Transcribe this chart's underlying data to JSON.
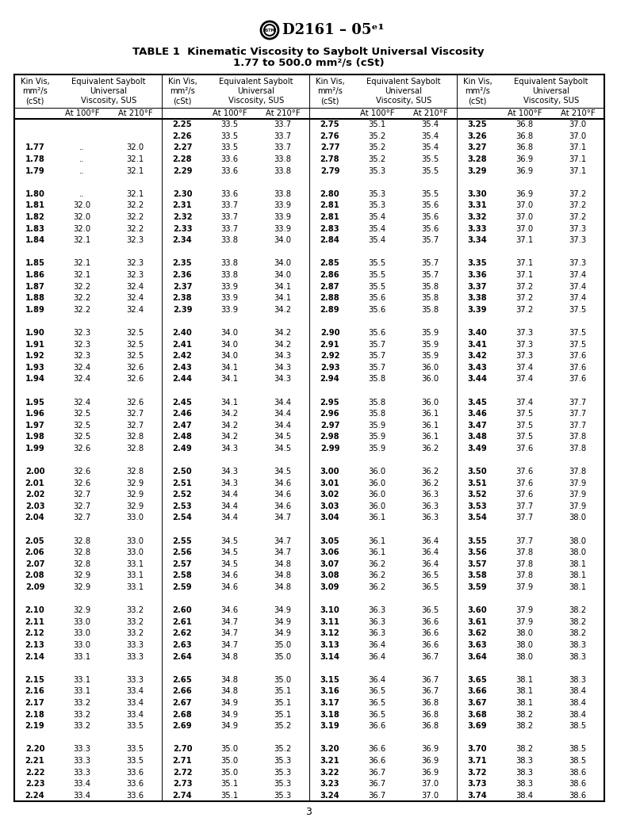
{
  "title_line1": "TABLE 1  Kinematic Viscosity to Saybolt Universal Viscosity",
  "title_line2": "1.77 to 500.0 mm²/s (cSt)",
  "header_doc": "D2161 – 05ᵉ¹",
  "page_num": "3",
  "rows": [
    [
      "",
      "",
      "",
      "2.25",
      "33.5",
      "33.7",
      "2.75",
      "35.1",
      "35.4",
      "3.25",
      "36.8",
      "37.0"
    ],
    [
      "",
      "",
      "",
      "2.26",
      "33.5",
      "33.7",
      "2.76",
      "35.2",
      "35.4",
      "3.26",
      "36.8",
      "37.0"
    ],
    [
      "1.77",
      "..",
      "32.0",
      "2.27",
      "33.5",
      "33.7",
      "2.77",
      "35.2",
      "35.4",
      "3.27",
      "36.8",
      "37.1"
    ],
    [
      "1.78",
      "..",
      "32.1",
      "2.28",
      "33.6",
      "33.8",
      "2.78",
      "35.2",
      "35.5",
      "3.28",
      "36.9",
      "37.1"
    ],
    [
      "1.79",
      "..",
      "32.1",
      "2.29",
      "33.6",
      "33.8",
      "2.79",
      "35.3",
      "35.5",
      "3.29",
      "36.9",
      "37.1"
    ],
    [
      "",
      "",
      "",
      "",
      "",
      "",
      "",
      "",
      "",
      "",
      "",
      ""
    ],
    [
      "1.80",
      "..",
      "32.1",
      "2.30",
      "33.6",
      "33.8",
      "2.80",
      "35.3",
      "35.5",
      "3.30",
      "36.9",
      "37.2"
    ],
    [
      "1.81",
      "32.0",
      "32.2",
      "2.31",
      "33.7",
      "33.9",
      "2.81",
      "35.3",
      "35.6",
      "3.31",
      "37.0",
      "37.2"
    ],
    [
      "1.82",
      "32.0",
      "32.2",
      "2.32",
      "33.7",
      "33.9",
      "2.81",
      "35.4",
      "35.6",
      "3.32",
      "37.0",
      "37.2"
    ],
    [
      "1.83",
      "32.0",
      "32.2",
      "2.33",
      "33.7",
      "33.9",
      "2.83",
      "35.4",
      "35.6",
      "3.33",
      "37.0",
      "37.3"
    ],
    [
      "1.84",
      "32.1",
      "32.3",
      "2.34",
      "33.8",
      "34.0",
      "2.84",
      "35.4",
      "35.7",
      "3.34",
      "37.1",
      "37.3"
    ],
    [
      "",
      "",
      "",
      "",
      "",
      "",
      "",
      "",
      "",
      "",
      "",
      ""
    ],
    [
      "1.85",
      "32.1",
      "32.3",
      "2.35",
      "33.8",
      "34.0",
      "2.85",
      "35.5",
      "35.7",
      "3.35",
      "37.1",
      "37.3"
    ],
    [
      "1.86",
      "32.1",
      "32.3",
      "2.36",
      "33.8",
      "34.0",
      "2.86",
      "35.5",
      "35.7",
      "3.36",
      "37.1",
      "37.4"
    ],
    [
      "1.87",
      "32.2",
      "32.4",
      "2.37",
      "33.9",
      "34.1",
      "2.87",
      "35.5",
      "35.8",
      "3.37",
      "37.2",
      "37.4"
    ],
    [
      "1.88",
      "32.2",
      "32.4",
      "2.38",
      "33.9",
      "34.1",
      "2.88",
      "35.6",
      "35.8",
      "3.38",
      "37.2",
      "37.4"
    ],
    [
      "1.89",
      "32.2",
      "32.4",
      "2.39",
      "33.9",
      "34.2",
      "2.89",
      "35.6",
      "35.8",
      "3.39",
      "37.2",
      "37.5"
    ],
    [
      "",
      "",
      "",
      "",
      "",
      "",
      "",
      "",
      "",
      "",
      "",
      ""
    ],
    [
      "1.90",
      "32.3",
      "32.5",
      "2.40",
      "34.0",
      "34.2",
      "2.90",
      "35.6",
      "35.9",
      "3.40",
      "37.3",
      "37.5"
    ],
    [
      "1.91",
      "32.3",
      "32.5",
      "2.41",
      "34.0",
      "34.2",
      "2.91",
      "35.7",
      "35.9",
      "3.41",
      "37.3",
      "37.5"
    ],
    [
      "1.92",
      "32.3",
      "32.5",
      "2.42",
      "34.0",
      "34.3",
      "2.92",
      "35.7",
      "35.9",
      "3.42",
      "37.3",
      "37.6"
    ],
    [
      "1.93",
      "32.4",
      "32.6",
      "2.43",
      "34.1",
      "34.3",
      "2.93",
      "35.7",
      "36.0",
      "3.43",
      "37.4",
      "37.6"
    ],
    [
      "1.94",
      "32.4",
      "32.6",
      "2.44",
      "34.1",
      "34.3",
      "2.94",
      "35.8",
      "36.0",
      "3.44",
      "37.4",
      "37.6"
    ],
    [
      "",
      "",
      "",
      "",
      "",
      "",
      "",
      "",
      "",
      "",
      "",
      ""
    ],
    [
      "1.95",
      "32.4",
      "32.6",
      "2.45",
      "34.1",
      "34.4",
      "2.95",
      "35.8",
      "36.0",
      "3.45",
      "37.4",
      "37.7"
    ],
    [
      "1.96",
      "32.5",
      "32.7",
      "2.46",
      "34.2",
      "34.4",
      "2.96",
      "35.8",
      "36.1",
      "3.46",
      "37.5",
      "37.7"
    ],
    [
      "1.97",
      "32.5",
      "32.7",
      "2.47",
      "34.2",
      "34.4",
      "2.97",
      "35.9",
      "36.1",
      "3.47",
      "37.5",
      "37.7"
    ],
    [
      "1.98",
      "32.5",
      "32.8",
      "2.48",
      "34.2",
      "34.5",
      "2.98",
      "35.9",
      "36.1",
      "3.48",
      "37.5",
      "37.8"
    ],
    [
      "1.99",
      "32.6",
      "32.8",
      "2.49",
      "34.3",
      "34.5",
      "2.99",
      "35.9",
      "36.2",
      "3.49",
      "37.6",
      "37.8"
    ],
    [
      "",
      "",
      "",
      "",
      "",
      "",
      "",
      "",
      "",
      "",
      "",
      ""
    ],
    [
      "2.00",
      "32.6",
      "32.8",
      "2.50",
      "34.3",
      "34.5",
      "3.00",
      "36.0",
      "36.2",
      "3.50",
      "37.6",
      "37.8"
    ],
    [
      "2.01",
      "32.6",
      "32.9",
      "2.51",
      "34.3",
      "34.6",
      "3.01",
      "36.0",
      "36.2",
      "3.51",
      "37.6",
      "37.9"
    ],
    [
      "2.02",
      "32.7",
      "32.9",
      "2.52",
      "34.4",
      "34.6",
      "3.02",
      "36.0",
      "36.3",
      "3.52",
      "37.6",
      "37.9"
    ],
    [
      "2.03",
      "32.7",
      "32.9",
      "2.53",
      "34.4",
      "34.6",
      "3.03",
      "36.0",
      "36.3",
      "3.53",
      "37.7",
      "37.9"
    ],
    [
      "2.04",
      "32.7",
      "33.0",
      "2.54",
      "34.4",
      "34.7",
      "3.04",
      "36.1",
      "36.3",
      "3.54",
      "37.7",
      "38.0"
    ],
    [
      "",
      "",
      "",
      "",
      "",
      "",
      "",
      "",
      "",
      "",
      "",
      ""
    ],
    [
      "2.05",
      "32.8",
      "33.0",
      "2.55",
      "34.5",
      "34.7",
      "3.05",
      "36.1",
      "36.4",
      "3.55",
      "37.7",
      "38.0"
    ],
    [
      "2.06",
      "32.8",
      "33.0",
      "2.56",
      "34.5",
      "34.7",
      "3.06",
      "36.1",
      "36.4",
      "3.56",
      "37.8",
      "38.0"
    ],
    [
      "2.07",
      "32.8",
      "33.1",
      "2.57",
      "34.5",
      "34.8",
      "3.07",
      "36.2",
      "36.4",
      "3.57",
      "37.8",
      "38.1"
    ],
    [
      "2.08",
      "32.9",
      "33.1",
      "2.58",
      "34.6",
      "34.8",
      "3.08",
      "36.2",
      "36.5",
      "3.58",
      "37.8",
      "38.1"
    ],
    [
      "2.09",
      "32.9",
      "33.1",
      "2.59",
      "34.6",
      "34.8",
      "3.09",
      "36.2",
      "36.5",
      "3.59",
      "37.9",
      "38.1"
    ],
    [
      "",
      "",
      "",
      "",
      "",
      "",
      "",
      "",
      "",
      "",
      "",
      ""
    ],
    [
      "2.10",
      "32.9",
      "33.2",
      "2.60",
      "34.6",
      "34.9",
      "3.10",
      "36.3",
      "36.5",
      "3.60",
      "37.9",
      "38.2"
    ],
    [
      "2.11",
      "33.0",
      "33.2",
      "2.61",
      "34.7",
      "34.9",
      "3.11",
      "36.3",
      "36.6",
      "3.61",
      "37.9",
      "38.2"
    ],
    [
      "2.12",
      "33.0",
      "33.2",
      "2.62",
      "34.7",
      "34.9",
      "3.12",
      "36.3",
      "36.6",
      "3.62",
      "38.0",
      "38.2"
    ],
    [
      "2.13",
      "33.0",
      "33.3",
      "2.63",
      "34.7",
      "35.0",
      "3.13",
      "36.4",
      "36.6",
      "3.63",
      "38.0",
      "38.3"
    ],
    [
      "2.14",
      "33.1",
      "33.3",
      "2.64",
      "34.8",
      "35.0",
      "3.14",
      "36.4",
      "36.7",
      "3.64",
      "38.0",
      "38.3"
    ],
    [
      "",
      "",
      "",
      "",
      "",
      "",
      "",
      "",
      "",
      "",
      "",
      ""
    ],
    [
      "2.15",
      "33.1",
      "33.3",
      "2.65",
      "34.8",
      "35.0",
      "3.15",
      "36.4",
      "36.7",
      "3.65",
      "38.1",
      "38.3"
    ],
    [
      "2.16",
      "33.1",
      "33.4",
      "2.66",
      "34.8",
      "35.1",
      "3.16",
      "36.5",
      "36.7",
      "3.66",
      "38.1",
      "38.4"
    ],
    [
      "2.17",
      "33.2",
      "33.4",
      "2.67",
      "34.9",
      "35.1",
      "3.17",
      "36.5",
      "36.8",
      "3.67",
      "38.1",
      "38.4"
    ],
    [
      "2.18",
      "33.2",
      "33.4",
      "2.68",
      "34.9",
      "35.1",
      "3.18",
      "36.5",
      "36.8",
      "3.68",
      "38.2",
      "38.4"
    ],
    [
      "2.19",
      "33.2",
      "33.5",
      "2.69",
      "34.9",
      "35.2",
      "3.19",
      "36.6",
      "36.8",
      "3.69",
      "38.2",
      "38.5"
    ],
    [
      "",
      "",
      "",
      "",
      "",
      "",
      "",
      "",
      "",
      "",
      "",
      ""
    ],
    [
      "2.20",
      "33.3",
      "33.5",
      "2.70",
      "35.0",
      "35.2",
      "3.20",
      "36.6",
      "36.9",
      "3.70",
      "38.2",
      "38.5"
    ],
    [
      "2.21",
      "33.3",
      "33.5",
      "2.71",
      "35.0",
      "35.3",
      "3.21",
      "36.6",
      "36.9",
      "3.71",
      "38.3",
      "38.5"
    ],
    [
      "2.22",
      "33.3",
      "33.6",
      "2.72",
      "35.0",
      "35.3",
      "3.22",
      "36.7",
      "36.9",
      "3.72",
      "38.3",
      "38.6"
    ],
    [
      "2.23",
      "33.4",
      "33.6",
      "2.73",
      "35.1",
      "35.3",
      "3.23",
      "36.7",
      "37.0",
      "3.73",
      "38.3",
      "38.6"
    ],
    [
      "2.24",
      "33.4",
      "33.6",
      "2.74",
      "35.1",
      "35.3",
      "3.24",
      "36.7",
      "37.0",
      "3.74",
      "38.4",
      "38.6"
    ]
  ],
  "background_color": "#ffffff",
  "text_color": "#000000",
  "data_font_size": 7.2,
  "header_font_size": 7.2,
  "title_font_size": 9.5,
  "doc_header_font_size": 13
}
